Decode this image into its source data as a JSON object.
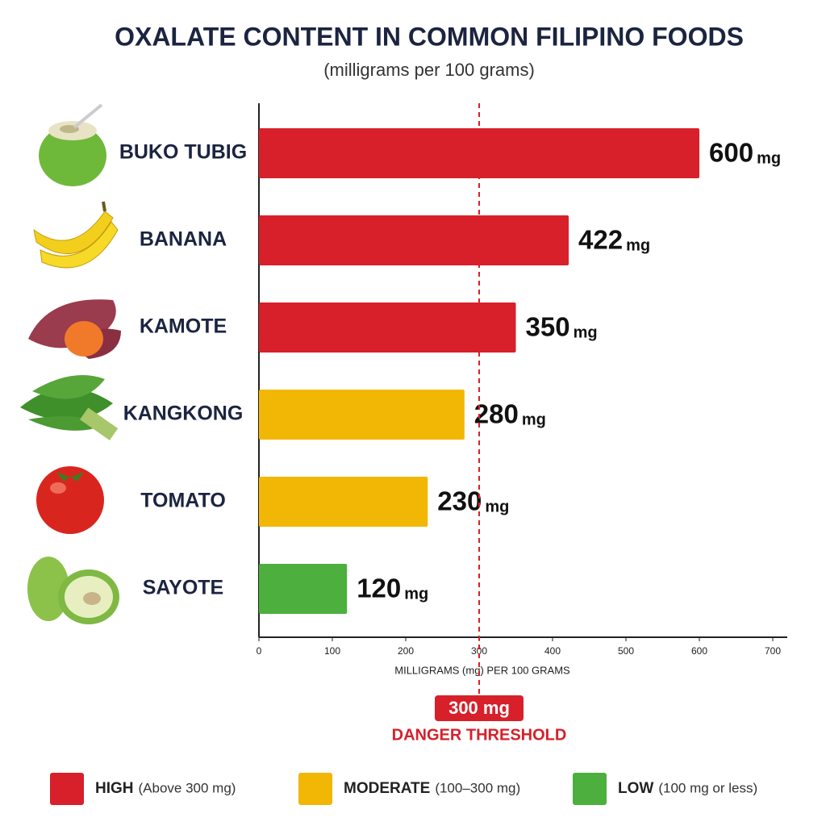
{
  "chart_data": {
    "type": "bar",
    "orientation": "horizontal",
    "title": "OXALATE CONTENT IN COMMON FILIPINO FOODS",
    "subtitle": "(milligrams per 100 grams)",
    "categories": [
      "BUKO TUBIG",
      "BANANA",
      "KAMOTE",
      "KANGKONG",
      "TOMATO",
      "SAYOTE"
    ],
    "values": [
      600,
      422,
      350,
      280,
      230,
      120
    ],
    "value_unit": "mg",
    "colors": [
      "#d7202a",
      "#d7202a",
      "#d7202a",
      "#f2b705",
      "#f2b705",
      "#4caf3e"
    ],
    "xlim": [
      0,
      700
    ],
    "xticks": [
      0,
      100,
      200,
      300,
      400,
      500,
      600,
      700
    ],
    "xlabel": "MILLIGRAMS (mg) PER 100 GRAMS",
    "threshold": {
      "value": 300,
      "label": "300 mg",
      "caption": "DANGER THRESHOLD",
      "color": "#d7202a"
    },
    "legend": [
      {
        "label": "HIGH",
        "note": "(Above 300 mg)",
        "color": "#d7202a"
      },
      {
        "label": "MODERATE",
        "note": "(100–300 mg)",
        "color": "#f2b705"
      },
      {
        "label": "LOW",
        "note": "(100 mg or less)",
        "color": "#4caf3e"
      }
    ]
  }
}
